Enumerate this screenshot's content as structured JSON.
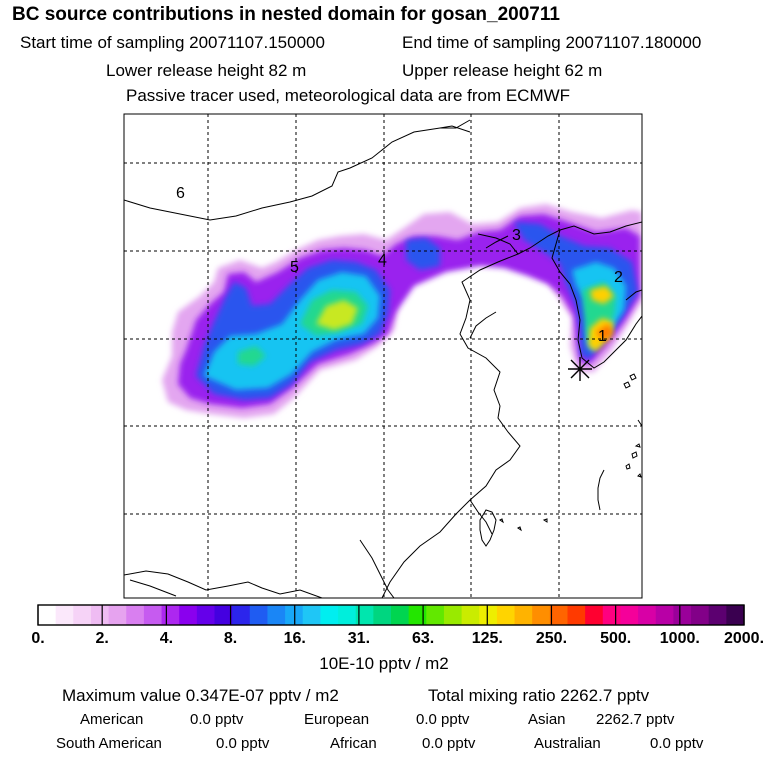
{
  "header": {
    "title": "BC  source contributions in nested domain for gosan_200711",
    "start_time": "Start time of sampling 20071107.150000",
    "end_time": "End time of sampling 20071107.180000",
    "lower_height": "Lower release height   82 m",
    "upper_height": "Upper release height   62 m",
    "tracer_note": "Passive tracer used, meteorological data are from ECMWF"
  },
  "chart_data": {
    "type": "heatmap",
    "title": "BC  source contributions in nested domain for gosan_200711",
    "map_labels": [
      "1",
      "2",
      "3",
      "4",
      "5",
      "6"
    ],
    "colorbar": {
      "tick_labels": [
        "0.",
        "2.",
        "4.",
        "8.",
        "16.",
        "31.",
        "63.",
        "125.",
        "250.",
        "500.",
        "1000.",
        "2000."
      ],
      "unit_label": "10E-10 pptv / m2",
      "colors": [
        "#ffffff",
        "#fbe8fb",
        "#f6d3f7",
        "#efbcf3",
        "#e6a3ef",
        "#d97ff0",
        "#c65bf0",
        "#ad27f0",
        "#8a00ee",
        "#6500ea",
        "#4400e0",
        "#2c25ec",
        "#1f5cf2",
        "#1a86f6",
        "#18a8f8",
        "#1fc6f6",
        "#00eef0",
        "#00eedc",
        "#00e6ae",
        "#00d680",
        "#00d550",
        "#23e600",
        "#62e800",
        "#99ea00",
        "#caec00",
        "#eeee00",
        "#ffd400",
        "#ffb300",
        "#ff8e00",
        "#ff6400",
        "#ff3a00",
        "#ff0030",
        "#ff0080",
        "#f5009a",
        "#d800a6",
        "#b800a6",
        "#9a009a",
        "#820088",
        "#5c0070",
        "#3a0050"
      ]
    }
  },
  "footer": {
    "max_value": "Maximum value  0.347E-07 pptv / m2",
    "total_mixing": "Total mixing ratio     2262.7 pptv",
    "regions": [
      {
        "name": "American",
        "value": "0.0 pptv"
      },
      {
        "name": "European",
        "value": "0.0 pptv"
      },
      {
        "name": "Asian",
        "value": "2262.7 pptv"
      },
      {
        "name": "South American",
        "value": "0.0 pptv"
      },
      {
        "name": "African",
        "value": "0.0 pptv"
      },
      {
        "name": "Australian",
        "value": "0.0 pptv"
      }
    ]
  }
}
